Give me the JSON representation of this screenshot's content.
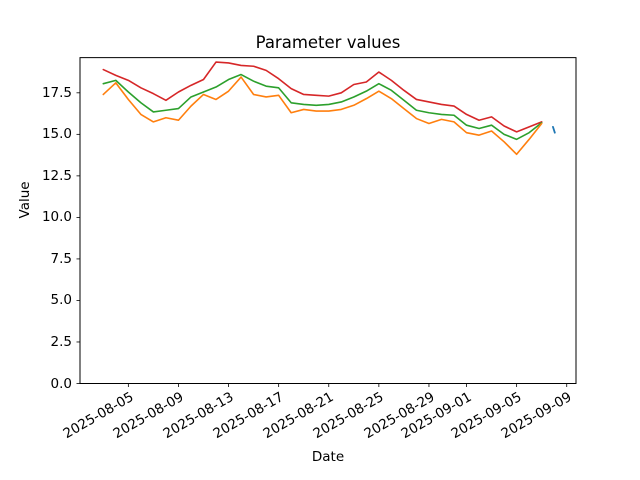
{
  "figure": {
    "title": "Parameter values",
    "xlabel": "Date",
    "ylabel": "Value"
  },
  "chart_data": {
    "type": "line",
    "title": "Parameter values",
    "xlabel": "Date",
    "ylabel": "Value",
    "grid": false,
    "legend": "none",
    "ylim": [
      0,
      19.62
    ],
    "xlim_days": [
      -1.86,
      37.74
    ],
    "x": [
      "2025-08-03",
      "2025-08-04",
      "2025-08-05",
      "2025-08-06",
      "2025-08-07",
      "2025-08-08",
      "2025-08-09",
      "2025-08-10",
      "2025-08-11",
      "2025-08-12",
      "2025-08-13",
      "2025-08-14",
      "2025-08-15",
      "2025-08-16",
      "2025-08-17",
      "2025-08-18",
      "2025-08-19",
      "2025-08-20",
      "2025-08-21",
      "2025-08-22",
      "2025-08-23",
      "2025-08-24",
      "2025-08-25",
      "2025-08-26",
      "2025-08-27",
      "2025-08-28",
      "2025-08-29",
      "2025-08-30",
      "2025-08-31",
      "2025-09-01",
      "2025-09-02",
      "2025-09-03",
      "2025-09-04",
      "2025-09-05",
      "2025-09-06",
      "2025-09-07"
    ],
    "series": [
      {
        "name": "red-series",
        "color": "#d62728",
        "values": [
          18.9,
          18.55,
          18.25,
          17.8,
          17.45,
          17.05,
          17.55,
          17.95,
          18.3,
          19.35,
          19.3,
          19.15,
          19.1,
          18.85,
          18.35,
          17.75,
          17.4,
          17.35,
          17.3,
          17.5,
          18.0,
          18.15,
          18.75,
          18.25,
          17.65,
          17.1,
          16.95,
          16.8,
          16.7,
          16.2,
          15.85,
          16.05,
          15.5,
          15.15,
          15.45,
          15.75
        ]
      },
      {
        "name": "green-series",
        "color": "#2ca02c",
        "values": [
          18.05,
          18.25,
          17.55,
          16.9,
          16.35,
          16.45,
          16.55,
          17.25,
          17.55,
          17.85,
          18.3,
          18.6,
          18.2,
          17.9,
          17.8,
          16.9,
          16.8,
          16.75,
          16.8,
          16.95,
          17.25,
          17.6,
          18.05,
          17.65,
          17.05,
          16.45,
          16.3,
          16.2,
          16.15,
          15.55,
          15.35,
          15.55,
          15.0,
          14.7,
          15.1,
          15.7
        ]
      },
      {
        "name": "orange-series",
        "color": "#ff7f0e",
        "values": [
          17.4,
          18.1,
          17.1,
          16.2,
          15.75,
          16.0,
          15.85,
          16.7,
          17.4,
          17.1,
          17.6,
          18.45,
          17.4,
          17.25,
          17.35,
          16.3,
          16.5,
          16.4,
          16.4,
          16.5,
          16.75,
          17.15,
          17.6,
          17.15,
          16.55,
          15.95,
          15.65,
          15.9,
          15.75,
          15.1,
          14.95,
          15.2,
          14.55,
          13.8,
          14.7,
          15.65
        ]
      }
    ],
    "extra_segment": {
      "name": "blue-series",
      "color": "#1f77b4",
      "points": [
        {
          "day_offset": 35.9,
          "date": "2025-09-08",
          "value": 15.45
        },
        {
          "day_offset": 36.05,
          "date": "2025-09-08",
          "value": 15.1
        }
      ]
    },
    "xticks": [
      {
        "day": 2,
        "label": "2025-08-05"
      },
      {
        "day": 6,
        "label": "2025-08-09"
      },
      {
        "day": 10,
        "label": "2025-08-13"
      },
      {
        "day": 14,
        "label": "2025-08-17"
      },
      {
        "day": 18,
        "label": "2025-08-21"
      },
      {
        "day": 22,
        "label": "2025-08-25"
      },
      {
        "day": 26,
        "label": "2025-08-29"
      },
      {
        "day": 29,
        "label": "2025-09-01"
      },
      {
        "day": 33,
        "label": "2025-09-05"
      },
      {
        "day": 37,
        "label": "2025-09-09"
      }
    ],
    "yticks": [
      {
        "value": 0,
        "label": "0.0"
      },
      {
        "value": 2.5,
        "label": "2.5"
      },
      {
        "value": 5,
        "label": "5.0"
      },
      {
        "value": 7.5,
        "label": "7.5"
      },
      {
        "value": 10,
        "label": "10.0"
      },
      {
        "value": 12.5,
        "label": "12.5"
      },
      {
        "value": 15,
        "label": "15.0"
      },
      {
        "value": 17.5,
        "label": "17.5"
      }
    ],
    "colors": {
      "axes": "#000000",
      "background": "#ffffff"
    }
  }
}
